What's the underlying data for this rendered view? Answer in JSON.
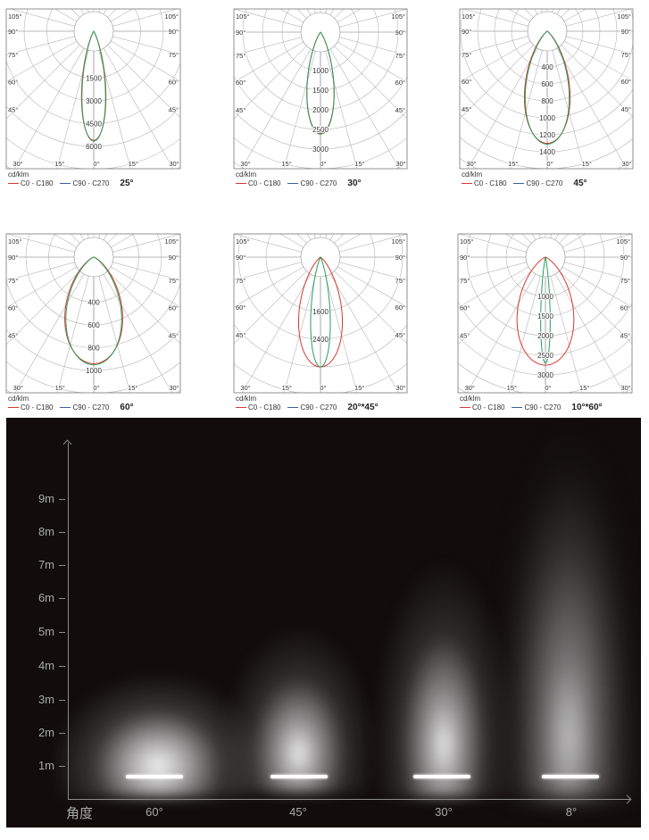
{
  "chart_data": [
    {
      "type": "polar",
      "unit": "cd/klm",
      "beam_label": "25°",
      "ring_labels": [
        "1500",
        "3000",
        "4500",
        "6000"
      ],
      "angle_labels_side": [
        "105°",
        "90°",
        "75°",
        "60°",
        "45°"
      ],
      "angle_labels_bottom": [
        "30°",
        "15°",
        "0°",
        "15°",
        "30°"
      ],
      "series": [
        {
          "name": "C0 - C180",
          "color": "#d9372f",
          "peak": 5600,
          "beam_angle": 25
        },
        {
          "name": "C90 - C270",
          "color": "#3b5f9e",
          "curve_color": "#2a9d5c",
          "peak": 5650,
          "beam_angle": 24
        }
      ]
    },
    {
      "type": "polar",
      "unit": "cd/klm",
      "beam_label": "30°",
      "ring_labels": [
        "1000",
        "1500",
        "2000",
        "2500",
        "3000"
      ],
      "angle_labels_side": [
        "105°",
        "90°",
        "75°",
        "60°",
        "45°"
      ],
      "angle_labels_bottom": [
        "30°",
        "15°",
        "0°",
        "15°",
        "30°"
      ],
      "series": [
        {
          "name": "C0 - C180",
          "color": "#d9372f",
          "peak": 2600,
          "beam_angle": 30
        },
        {
          "name": "C90 - C270",
          "color": "#3b5f9e",
          "curve_color": "#2a9d5c",
          "peak": 2620,
          "beam_angle": 30
        }
      ]
    },
    {
      "type": "polar",
      "unit": "cd/klm",
      "beam_label": "45°",
      "ring_labels": [
        "400",
        "600",
        "800",
        "1000",
        "1200",
        "1400"
      ],
      "angle_labels_side": [
        "105°",
        "90°",
        "75°",
        "60°",
        "45°"
      ],
      "angle_labels_bottom": [
        "30°",
        "15°",
        "0°",
        "15°",
        "30°"
      ],
      "series": [
        {
          "name": "C0 - C180",
          "color": "#d9372f",
          "peak": 1300,
          "beam_angle": 46
        },
        {
          "name": "C90 - C270",
          "color": "#3b5f9e",
          "curve_color": "#2a9d5c",
          "peak": 1310,
          "beam_angle": 44
        }
      ]
    },
    {
      "type": "polar",
      "unit": "cd/klm",
      "beam_label": "60°",
      "ring_labels": [
        "400",
        "600",
        "800",
        "1000"
      ],
      "angle_labels_side": [
        "105°",
        "90°",
        "75°",
        "60°",
        "45°"
      ],
      "angle_labels_bottom": [
        "30°",
        "15°",
        "0°",
        "15°",
        "30°"
      ],
      "series": [
        {
          "name": "C0 - C180",
          "color": "#d9372f",
          "peak": 940,
          "beam_angle": 62
        },
        {
          "name": "C90 - C270",
          "color": "#3b5f9e",
          "curve_color": "#2a9d5c",
          "peak": 950,
          "beam_angle": 59
        }
      ]
    },
    {
      "type": "polar",
      "unit": "cd/klm",
      "beam_label": "20°*45°",
      "ring_labels": [
        "1600",
        "2400"
      ],
      "angle_labels_side": [
        "105°",
        "90°",
        "75°",
        "60°",
        "45°"
      ],
      "angle_labels_bottom": [
        "30°",
        "15°",
        "0°",
        "15°",
        "30°"
      ],
      "series": [
        {
          "name": "C0 - C180",
          "color": "#d9372f",
          "peak": 3200,
          "beam_angle": 45
        },
        {
          "name": "C90 - C270",
          "color": "#3b5f9e",
          "curve_color": "#2a9d5c",
          "peak": 3200,
          "beam_angle": 20
        }
      ]
    },
    {
      "type": "polar",
      "unit": "cd/klm",
      "beam_label": "10°*60°",
      "ring_labels": [
        "1000",
        "1500",
        "2000",
        "2500",
        "3000"
      ],
      "angle_labels_side": [
        "105°",
        "90°",
        "75°",
        "60°",
        "45°"
      ],
      "angle_labels_bottom": [
        "30°",
        "15°",
        "0°",
        "15°",
        "30°"
      ],
      "series": [
        {
          "name": "C0 - C180",
          "color": "#d9372f",
          "peak": 2750,
          "beam_angle": 60
        },
        {
          "name": "C90 - C270",
          "color": "#3b5f9e",
          "curve_color": "#2a9d5c",
          "peak": 2700,
          "beam_angle": 10
        }
      ]
    }
  ],
  "illumination": {
    "y_ticks": [
      "1m",
      "2m",
      "3m",
      "4m",
      "5m",
      "6m",
      "7m",
      "8m",
      "9m"
    ],
    "x_axis_label": "角度",
    "beams": [
      {
        "label": "60°",
        "reach_m": 3.5
      },
      {
        "label": "45°",
        "reach_m": 5
      },
      {
        "label": "30°",
        "reach_m": 6
      },
      {
        "label": "8°",
        "reach_m": 10
      }
    ],
    "background": "#120c0c"
  }
}
